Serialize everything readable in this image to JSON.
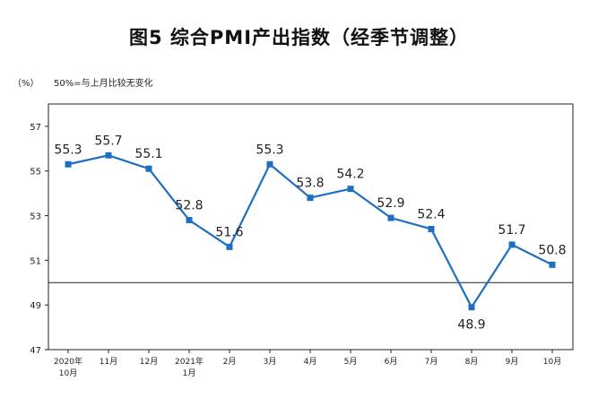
{
  "title": "图5 综合PMI产出指数（经季节调整）",
  "unit_label": "（%）",
  "note": "50%=与上月比较无变化",
  "chart_data": {
    "type": "line",
    "title": "图5 综合PMI产出指数（经季节调整）",
    "ylabel": "%",
    "ylim": [
      47,
      58
    ],
    "yticks": [
      47,
      49,
      51,
      53,
      55,
      57
    ],
    "reference_line": 50,
    "categories": [
      [
        "2020年",
        "10月"
      ],
      [
        "11月"
      ],
      [
        "12月"
      ],
      [
        "2021年",
        "1月"
      ],
      [
        "2月"
      ],
      [
        "3月"
      ],
      [
        "4月"
      ],
      [
        "5月"
      ],
      [
        "6月"
      ],
      [
        "7月"
      ],
      [
        "8月"
      ],
      [
        "9月"
      ],
      [
        "10月"
      ]
    ],
    "values": [
      55.3,
      55.7,
      55.1,
      52.8,
      51.6,
      55.3,
      53.8,
      54.2,
      52.9,
      52.4,
      48.9,
      51.7,
      50.8
    ],
    "data_labels": [
      "55.3",
      "55.7",
      "55.1",
      "52.8",
      "51.6",
      "55.3",
      "53.8",
      "54.2",
      "52.9",
      "52.4",
      "48.9",
      "51.7",
      "50.8"
    ],
    "line_color": "#1f6fc0",
    "grid": false
  }
}
